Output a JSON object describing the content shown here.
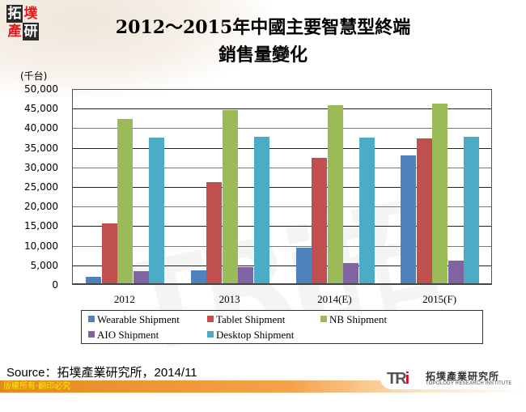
{
  "header": {
    "logo_chars": [
      "拓",
      "墣",
      "產",
      "研"
    ],
    "title_line1": "2012～2015年中國主要智慧型終端",
    "title_line2": "銷售量變化"
  },
  "chart_data": {
    "type": "bar",
    "title": "2012～2015年中國主要智慧型終端銷售量變化",
    "xlabel": "",
    "ylabel": "(千台)",
    "ylim": [
      0,
      50000
    ],
    "y_ticks": [
      "50,000",
      "45,000",
      "40,000",
      "35,000",
      "30,000",
      "25,000",
      "20,000",
      "15,000",
      "10,000",
      "5,000",
      "0"
    ],
    "grid": true,
    "legend_position": "bottom",
    "categories": [
      "2012",
      "2013",
      "2014(E)",
      "2015(F)"
    ],
    "series": [
      {
        "name": "Wearable Shipment",
        "color": "#4f81bd",
        "values": [
          1600,
          3400,
          9000,
          32700
        ]
      },
      {
        "name": "Tablet Shipment",
        "color": "#c0504d",
        "values": [
          15200,
          25900,
          32000,
          36900
        ]
      },
      {
        "name": "NB Shipment",
        "color": "#9bbb59",
        "values": [
          42000,
          44200,
          45500,
          45800
        ]
      },
      {
        "name": "AIO Shipment",
        "color": "#8064a2",
        "values": [
          3200,
          4100,
          5100,
          5700
        ]
      },
      {
        "name": "Desktop Shipment",
        "color": "#4bacc6",
        "values": [
          37100,
          37300,
          37100,
          37300
        ]
      }
    ]
  },
  "footer": {
    "source": "Source：拓墣產業研究所，2014/11",
    "copyright": "版權所有‧翻印必究",
    "tri_mark": "TRi",
    "tri_name_cn": "拓墣產業研究所",
    "tri_name_en": "TOPOLOGY RESEARCH INSTITUTE"
  }
}
